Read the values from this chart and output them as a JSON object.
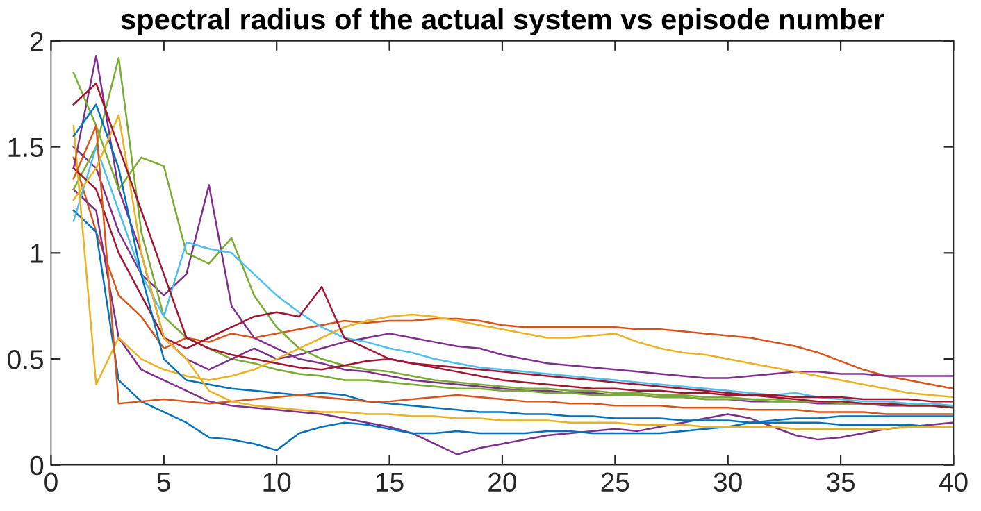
{
  "chart_data": {
    "type": "line",
    "title": "spectral radius of the actual system vs episode number",
    "x": [
      1,
      2,
      3,
      4,
      5,
      6,
      7,
      8,
      9,
      10,
      11,
      12,
      13,
      14,
      15,
      16,
      17,
      18,
      19,
      20,
      21,
      22,
      23,
      24,
      25,
      26,
      27,
      28,
      29,
      30,
      31,
      32,
      33,
      34,
      35,
      36,
      37,
      38,
      39,
      40
    ],
    "xlim": [
      0,
      40
    ],
    "xticks": [
      0,
      5,
      10,
      15,
      20,
      25,
      30,
      35,
      40
    ],
    "ylim": [
      0,
      2
    ],
    "yticks": [
      0,
      0.5,
      1,
      1.5,
      2
    ],
    "grid": false,
    "marker": "none",
    "line_style": "solid",
    "series": [
      {
        "color": "#d95319",
        "values": [
          1.45,
          1.1,
          0.8,
          0.7,
          0.55,
          0.6,
          0.58,
          0.62,
          0.6,
          0.62,
          0.64,
          0.66,
          0.68,
          0.67,
          0.68,
          0.68,
          0.69,
          0.69,
          0.68,
          0.66,
          0.65,
          0.65,
          0.65,
          0.65,
          0.65,
          0.64,
          0.64,
          0.63,
          0.62,
          0.61,
          0.6,
          0.58,
          0.56,
          0.53,
          0.49,
          0.45,
          0.42,
          0.4,
          0.38,
          0.36
        ]
      },
      {
        "color": "#7e2f8e",
        "values": [
          1.3,
          1.2,
          0.6,
          0.45,
          0.4,
          0.35,
          0.3,
          0.28,
          0.27,
          0.26,
          0.25,
          0.24,
          0.22,
          0.2,
          0.18,
          0.15,
          0.1,
          0.05,
          0.08,
          0.1,
          0.12,
          0.14,
          0.15,
          0.16,
          0.17,
          0.16,
          0.18,
          0.2,
          0.22,
          0.24,
          0.22,
          0.18,
          0.14,
          0.12,
          0.13,
          0.15,
          0.17,
          0.18,
          0.19,
          0.2
        ]
      },
      {
        "color": "#7e2f8e",
        "values": [
          1.5,
          1.4,
          1.1,
          0.9,
          0.8,
          0.9,
          1.32,
          0.75,
          0.6,
          0.55,
          0.5,
          0.48,
          0.45,
          0.44,
          0.42,
          0.4,
          0.39,
          0.38,
          0.37,
          0.36,
          0.35,
          0.35,
          0.34,
          0.34,
          0.33,
          0.33,
          0.32,
          0.32,
          0.31,
          0.31,
          0.3,
          0.3,
          0.3,
          0.29,
          0.29,
          0.29,
          0.28,
          0.28,
          0.28,
          0.27
        ]
      },
      {
        "color": "#77ac30",
        "values": [
          1.3,
          1.5,
          1.92,
          1.1,
          0.7,
          0.6,
          0.55,
          0.5,
          0.48,
          0.45,
          0.43,
          0.42,
          0.4,
          0.4,
          0.39,
          0.38,
          0.37,
          0.36,
          0.36,
          0.35,
          0.35,
          0.34,
          0.34,
          0.33,
          0.33,
          0.33,
          0.32,
          0.32,
          0.31,
          0.31,
          0.31,
          0.3,
          0.3,
          0.3,
          0.29,
          0.29,
          0.29,
          0.28,
          0.28,
          0.28
        ]
      },
      {
        "color": "#7e2f8e",
        "values": [
          1.4,
          1.93,
          1.3,
          1.0,
          0.6,
          0.5,
          0.45,
          0.5,
          0.55,
          0.5,
          0.52,
          0.55,
          0.58,
          0.6,
          0.62,
          0.6,
          0.58,
          0.56,
          0.55,
          0.52,
          0.5,
          0.48,
          0.47,
          0.46,
          0.45,
          0.44,
          0.43,
          0.42,
          0.41,
          0.41,
          0.42,
          0.43,
          0.44,
          0.44,
          0.43,
          0.43,
          0.42,
          0.42,
          0.42,
          0.42
        ]
      },
      {
        "color": "#77ac30",
        "values": [
          1.85,
          1.6,
          1.3,
          1.45,
          1.41,
          1.0,
          0.95,
          1.07,
          0.8,
          0.65,
          0.55,
          0.5,
          0.47,
          0.45,
          0.44,
          0.42,
          0.4,
          0.39,
          0.38,
          0.37,
          0.36,
          0.36,
          0.35,
          0.35,
          0.34,
          0.34,
          0.33,
          0.33,
          0.32,
          0.32,
          0.31,
          0.31,
          0.3,
          0.3,
          0.3,
          0.29,
          0.29,
          0.29,
          0.28,
          0.28
        ]
      },
      {
        "color": "#0072bd",
        "values": [
          1.2,
          1.1,
          0.4,
          0.3,
          0.25,
          0.2,
          0.13,
          0.12,
          0.1,
          0.07,
          0.15,
          0.18,
          0.2,
          0.19,
          0.17,
          0.15,
          0.15,
          0.16,
          0.15,
          0.15,
          0.15,
          0.16,
          0.16,
          0.15,
          0.15,
          0.15,
          0.15,
          0.16,
          0.17,
          0.18,
          0.2,
          0.21,
          0.22,
          0.22,
          0.23,
          0.23,
          0.23,
          0.23,
          0.23,
          0.23
        ]
      },
      {
        "color": "#4dbeee",
        "values": [
          1.15,
          1.5,
          1.2,
          0.9,
          0.7,
          1.05,
          1.02,
          1.0,
          0.9,
          0.8,
          0.72,
          0.65,
          0.6,
          0.58,
          0.55,
          0.53,
          0.5,
          0.48,
          0.46,
          0.45,
          0.44,
          0.43,
          0.42,
          0.41,
          0.4,
          0.39,
          0.38,
          0.37,
          0.36,
          0.35,
          0.34,
          0.33,
          0.34,
          0.32,
          0.31,
          0.3,
          0.3,
          0.29,
          0.29,
          0.28
        ]
      },
      {
        "color": "#edb120",
        "values": [
          1.6,
          0.38,
          0.6,
          0.5,
          0.45,
          0.42,
          0.4,
          0.42,
          0.45,
          0.5,
          0.55,
          0.6,
          0.65,
          0.68,
          0.7,
          0.71,
          0.7,
          0.68,
          0.66,
          0.64,
          0.62,
          0.6,
          0.6,
          0.61,
          0.62,
          0.58,
          0.55,
          0.53,
          0.52,
          0.5,
          0.48,
          0.46,
          0.44,
          0.42,
          0.4,
          0.38,
          0.36,
          0.34,
          0.33,
          0.32
        ]
      },
      {
        "color": "#a2142f",
        "values": [
          1.4,
          1.3,
          1.0,
          0.8,
          0.6,
          0.55,
          0.6,
          0.65,
          0.7,
          0.72,
          0.7,
          0.84,
          0.6,
          0.55,
          0.5,
          0.48,
          0.47,
          0.46,
          0.45,
          0.44,
          0.43,
          0.42,
          0.41,
          0.4,
          0.39,
          0.38,
          0.37,
          0.36,
          0.35,
          0.34,
          0.33,
          0.32,
          0.31,
          0.3,
          0.3,
          0.29,
          0.29,
          0.28,
          0.28,
          0.27
        ]
      },
      {
        "color": "#0072bd",
        "values": [
          1.55,
          1.7,
          1.4,
          0.9,
          0.5,
          0.4,
          0.38,
          0.36,
          0.35,
          0.34,
          0.33,
          0.34,
          0.33,
          0.3,
          0.29,
          0.28,
          0.27,
          0.26,
          0.25,
          0.25,
          0.24,
          0.24,
          0.23,
          0.23,
          0.22,
          0.22,
          0.22,
          0.21,
          0.21,
          0.21,
          0.2,
          0.2,
          0.2,
          0.2,
          0.19,
          0.19,
          0.19,
          0.19,
          0.18,
          0.18
        ]
      },
      {
        "color": "#d95319",
        "values": [
          1.35,
          1.6,
          0.29,
          0.3,
          0.31,
          0.3,
          0.29,
          0.3,
          0.31,
          0.32,
          0.33,
          0.32,
          0.31,
          0.3,
          0.3,
          0.31,
          0.32,
          0.33,
          0.32,
          0.31,
          0.3,
          0.3,
          0.29,
          0.29,
          0.28,
          0.28,
          0.28,
          0.27,
          0.27,
          0.27,
          0.26,
          0.26,
          0.26,
          0.25,
          0.25,
          0.25,
          0.24,
          0.24,
          0.24,
          0.24
        ]
      },
      {
        "color": "#edb120",
        "values": [
          1.25,
          1.4,
          1.65,
          1.0,
          0.6,
          0.5,
          0.35,
          0.3,
          0.28,
          0.27,
          0.26,
          0.25,
          0.25,
          0.24,
          0.24,
          0.23,
          0.23,
          0.22,
          0.22,
          0.21,
          0.21,
          0.21,
          0.2,
          0.2,
          0.2,
          0.19,
          0.19,
          0.19,
          0.18,
          0.18,
          0.18,
          0.18,
          0.17,
          0.17,
          0.17,
          0.17,
          0.17,
          0.18,
          0.18,
          0.18
        ]
      },
      {
        "color": "#a2142f",
        "values": [
          1.7,
          1.8,
          1.5,
          1.2,
          0.9,
          0.6,
          0.55,
          0.52,
          0.5,
          0.48,
          0.46,
          0.45,
          0.47,
          0.49,
          0.5,
          0.48,
          0.46,
          0.44,
          0.42,
          0.4,
          0.39,
          0.38,
          0.37,
          0.36,
          0.36,
          0.35,
          0.35,
          0.34,
          0.34,
          0.33,
          0.33,
          0.33,
          0.32,
          0.32,
          0.32,
          0.31,
          0.31,
          0.31,
          0.3,
          0.3
        ]
      }
    ]
  }
}
